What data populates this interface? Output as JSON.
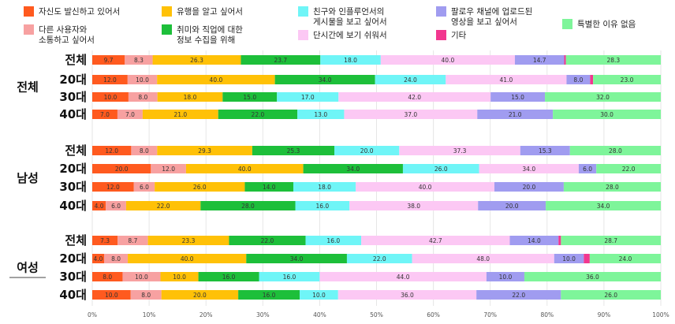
{
  "chart_data": {
    "type": "bar",
    "orientation": "horizontal",
    "stacked": true,
    "title": "",
    "xlabel": "",
    "ylabel": "",
    "xlim": [
      0,
      100
    ],
    "x_ticks": [
      "0%",
      "10%",
      "20%",
      "30%",
      "40%",
      "50%",
      "60%",
      "70%",
      "80%",
      "90%",
      "100%"
    ],
    "grid": true,
    "legend_position": "top",
    "series": [
      {
        "name": "자신도 발신하고 있어서",
        "color": "#ff5a1f"
      },
      {
        "name": "다른 사용자와 소통하고 싶어서",
        "color": "#f7a1a1"
      },
      {
        "name": "유행을 알고 싶어서",
        "color": "#ffc107"
      },
      {
        "name": "취미와 직업에 대한 정보 수집을 위해",
        "color": "#1dbf3a"
      },
      {
        "name": "친구와 인플루언서의 게시물을 보고 싶어서",
        "color": "#6ff5f7"
      },
      {
        "name": "단시간에 보기 쉬워서",
        "color": "#fcc8f4"
      },
      {
        "name": "팔로우 채널에 업로드된 영상을 보고 싶어서",
        "color": "#a09cf0"
      },
      {
        "name": "기타",
        "color": "#f2378f"
      },
      {
        "name": "특별한 이유 없음",
        "color": "#7ef59a"
      }
    ],
    "groups": [
      {
        "name": "전체",
        "rows": [
          {
            "label": "전체",
            "values": [
              9.7,
              8.3,
              26.3,
              23.7,
              18.0,
              40.0,
              14.7,
              0.5,
              28.3
            ]
          },
          {
            "label": "20대",
            "values": [
              12.0,
              10.0,
              40.0,
              34.0,
              24.0,
              41.0,
              8.0,
              1.0,
              23.0
            ]
          },
          {
            "label": "30대",
            "values": [
              10.0,
              8.0,
              18.0,
              15.0,
              17.0,
              42.0,
              15.0,
              0,
              32.0
            ]
          },
          {
            "label": "40대",
            "values": [
              7.0,
              7.0,
              21.0,
              22.0,
              13.0,
              37.0,
              21.0,
              0,
              30.0
            ]
          }
        ]
      },
      {
        "name": "남성",
        "rows": [
          {
            "label": "전체",
            "values": [
              12.0,
              8.0,
              29.3,
              25.3,
              20.0,
              37.3,
              15.3,
              0,
              28.0
            ]
          },
          {
            "label": "20대",
            "values": [
              20.0,
              12.0,
              40.0,
              34.0,
              26.0,
              34.0,
              6.0,
              0,
              22.0
            ]
          },
          {
            "label": "30대",
            "values": [
              12.0,
              6.0,
              26.0,
              14.0,
              18.0,
              40.0,
              20.0,
              0,
              28.0
            ]
          },
          {
            "label": "40대",
            "values": [
              4.0,
              6.0,
              22.0,
              28.0,
              16.0,
              38.0,
              20.0,
              0,
              34.0
            ]
          }
        ]
      },
      {
        "name": "여성",
        "rows": [
          {
            "label": "전체",
            "values": [
              7.3,
              8.7,
              23.3,
              22.0,
              16.0,
              42.7,
              14.0,
              0.7,
              28.7
            ]
          },
          {
            "label": "20대",
            "values": [
              4.0,
              8.0,
              40.0,
              34.0,
              22.0,
              48.0,
              10.0,
              2.0,
              24.0
            ]
          },
          {
            "label": "30대",
            "values": [
              8.0,
              10.0,
              10.0,
              16.0,
              16.0,
              44.0,
              10.0,
              0,
              36.0
            ]
          },
          {
            "label": "40대",
            "values": [
              10.0,
              8.0,
              20.0,
              16.0,
              10.0,
              36.0,
              22.0,
              0,
              26.0
            ]
          }
        ]
      }
    ]
  }
}
